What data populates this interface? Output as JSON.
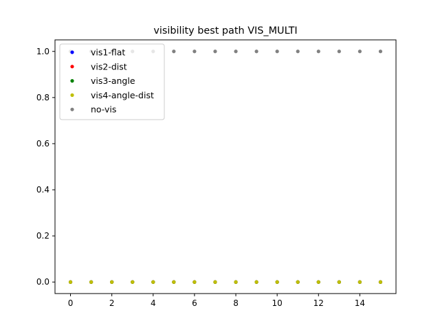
{
  "chart_data": {
    "type": "scatter",
    "title": "visibility best path VIS_MULTI",
    "xlabel": "",
    "ylabel": "",
    "xlim": [
      -0.75,
      15.75
    ],
    "ylim": [
      -0.05,
      1.05
    ],
    "x_ticks": [
      0,
      2,
      4,
      6,
      8,
      10,
      12,
      14
    ],
    "y_ticks": [
      0.0,
      0.2,
      0.4,
      0.6,
      0.8,
      1.0
    ],
    "y_tick_labels": [
      "0.0",
      "0.2",
      "0.4",
      "0.6",
      "0.8",
      "1.0"
    ],
    "grid": false,
    "legend_position": "upper-left",
    "series": [
      {
        "name": "vis1-flat",
        "color": "#0000ff",
        "x": [
          0,
          1,
          2,
          3,
          4,
          5,
          6,
          7,
          8,
          9,
          10,
          11,
          12,
          13,
          14,
          15
        ],
        "y": [
          0,
          0,
          0,
          0,
          0,
          0,
          0,
          0,
          0,
          0,
          0,
          0,
          0,
          0,
          0,
          0
        ]
      },
      {
        "name": "vis2-dist",
        "color": "#ff0000",
        "x": [
          0,
          1,
          2,
          3,
          4,
          5,
          6,
          7,
          8,
          9,
          10,
          11,
          12,
          13,
          14,
          15
        ],
        "y": [
          0,
          0,
          0,
          0,
          0,
          0,
          0,
          0,
          0,
          0,
          0,
          0,
          0,
          0,
          0,
          0
        ]
      },
      {
        "name": "vis3-angle",
        "color": "#008000",
        "x": [
          0,
          1,
          2,
          3,
          4,
          5,
          6,
          7,
          8,
          9,
          10,
          11,
          12,
          13,
          14,
          15
        ],
        "y": [
          0,
          0,
          0,
          0,
          0,
          0,
          0,
          0,
          0,
          0,
          0,
          0,
          0,
          0,
          0,
          0
        ]
      },
      {
        "name": "vis4-angle-dist",
        "color": "#bfbf00",
        "x": [
          0,
          1,
          2,
          3,
          4,
          5,
          6,
          7,
          8,
          9,
          10,
          11,
          12,
          13,
          14,
          15
        ],
        "y": [
          0,
          0,
          0,
          0,
          0,
          0,
          0,
          0,
          0,
          0,
          0,
          0,
          0,
          0,
          0,
          0
        ]
      },
      {
        "name": "no-vis",
        "color": "#808080",
        "x": [
          0,
          1,
          2,
          3,
          4,
          5,
          6,
          7,
          8,
          9,
          10,
          11,
          12,
          13,
          14,
          15
        ],
        "y": [
          1,
          1,
          1,
          1,
          1,
          1,
          1,
          1,
          1,
          1,
          1,
          1,
          1,
          1,
          1,
          1
        ]
      }
    ]
  }
}
